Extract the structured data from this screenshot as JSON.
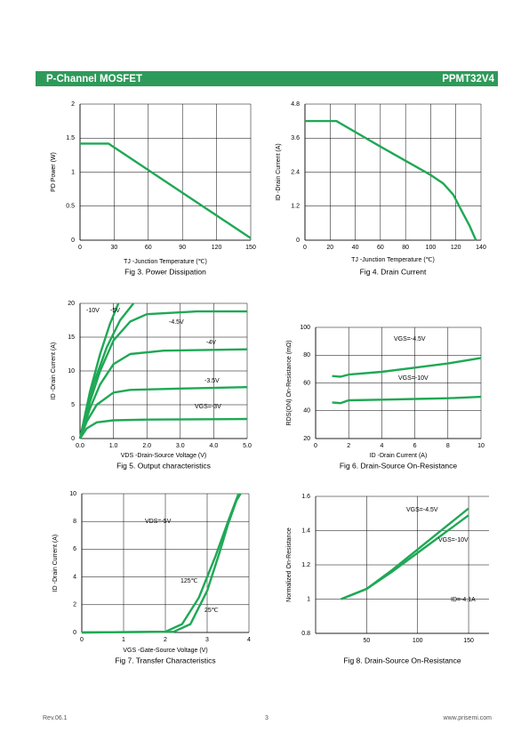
{
  "header": {
    "title": "P-Channel MOSFET",
    "part": "PPMT32V4"
  },
  "footer": {
    "rev": "Rev.06.1",
    "page": "3",
    "site": "www.prisemi.com"
  },
  "chart_data": [
    {
      "type": "line",
      "title": "Fig 3. Power Dissipation",
      "x_label": "TJ -Junction Temperature (℃)",
      "y_label": "PD Power (W)",
      "color": "#1fa855",
      "grid": true,
      "xlim": [
        0,
        150
      ],
      "xticks": [
        0,
        30,
        60,
        90,
        120,
        150
      ],
      "ylim": [
        0,
        2
      ],
      "yticks": [
        0,
        0.5,
        1,
        1.5,
        2
      ],
      "series": [
        {
          "x": [
            0,
            25,
            150
          ],
          "values": [
            1.42,
            1.42,
            0.03
          ]
        }
      ],
      "annotations": []
    },
    {
      "type": "line",
      "title": "Fig 4. Drain Current",
      "x_label": "TJ -Junction Temperature (℃)",
      "y_label": "ID -Drain Current (A)",
      "color": "#1fa855",
      "grid": true,
      "xlim": [
        0,
        140
      ],
      "xticks": [
        0,
        20,
        40,
        60,
        80,
        100,
        120,
        140
      ],
      "ylim": [
        0,
        4.8
      ],
      "yticks": [
        0,
        1.2,
        2.4,
        3.6,
        4.8
      ],
      "series": [
        {
          "x": [
            0,
            25,
            60,
            100,
            110,
            118,
            125,
            131,
            136
          ],
          "values": [
            4.2,
            4.2,
            3.3,
            2.3,
            2.0,
            1.6,
            1.0,
            0.5,
            0
          ]
        }
      ],
      "annotations": []
    },
    {
      "type": "line",
      "title": "Fig 5. Output characteristics",
      "x_label": "VDS -Drain-Source Voltage (V)",
      "y_label": "ID -Drain Current (A)",
      "color": "#1fa855",
      "grid": true,
      "xlim": [
        0,
        5
      ],
      "xticks": [
        {
          "value": 0,
          "label": "0.0"
        },
        {
          "value": 1,
          "label": "1.0"
        },
        {
          "value": 2,
          "label": "2.0"
        },
        {
          "value": 3,
          "label": "3.0"
        },
        {
          "value": 4,
          "label": "4.0"
        },
        {
          "value": 5,
          "label": "5.0"
        }
      ],
      "ylim": [
        0,
        20
      ],
      "yticks": [
        0,
        5,
        10,
        15,
        20
      ],
      "series": [
        {
          "name": "-10V",
          "x": [
            0,
            0.3,
            0.6,
            0.9,
            1.15
          ],
          "values": [
            0,
            7,
            12.5,
            17,
            20
          ]
        },
        {
          "name": "-5V",
          "x": [
            0,
            0.4,
            0.8,
            1.2,
            1.6
          ],
          "values": [
            0,
            8,
            13.5,
            17.5,
            20
          ]
        },
        {
          "name": "-4.5V",
          "x": [
            0,
            0.3,
            0.6,
            1,
            1.5,
            2,
            3.5,
            5
          ],
          "values": [
            0,
            5.5,
            10,
            14.5,
            17.3,
            18.4,
            18.8,
            18.8
          ]
        },
        {
          "name": "-4V",
          "x": [
            0,
            0.3,
            0.6,
            1,
            1.5,
            2.5,
            5
          ],
          "values": [
            0,
            4.5,
            8,
            11,
            12.5,
            13,
            13.2
          ]
        },
        {
          "name": "-3.5V",
          "x": [
            0,
            0.2,
            0.5,
            1,
            1.5,
            3,
            5
          ],
          "values": [
            0,
            2.5,
            5,
            6.8,
            7.2,
            7.4,
            7.6
          ]
        },
        {
          "name": "VGS=-3V",
          "x": [
            0,
            0.2,
            0.5,
            1,
            2,
            5
          ],
          "values": [
            0,
            1.5,
            2.4,
            2.7,
            2.8,
            2.9
          ]
        }
      ],
      "annotations": []
    },
    {
      "type": "line",
      "title": "Fig 6. Drain-Source On-Resistance",
      "x_label": "ID -Drain Current (A)",
      "y_label": "RDS(ON) On-Resistance (mΩ)",
      "color": "#1fa855",
      "grid": true,
      "xlim": [
        0,
        10
      ],
      "xticks": [
        0,
        2,
        4,
        6,
        8,
        10
      ],
      "ylim": [
        20,
        100
      ],
      "yticks": [
        20,
        40,
        60,
        80,
        100
      ],
      "series": [
        {
          "name": "VGS=-4.5V",
          "x": [
            1,
            1.5,
            2,
            4,
            6,
            8,
            10
          ],
          "values": [
            65,
            64.5,
            66,
            68,
            71,
            74,
            78
          ]
        },
        {
          "name": "VGS=-10V",
          "x": [
            1,
            1.5,
            2,
            4,
            6,
            8,
            10
          ],
          "values": [
            46,
            45.5,
            47.5,
            48,
            48.5,
            49,
            50
          ]
        }
      ],
      "annotations": []
    },
    {
      "type": "line",
      "title": "Fig 7. Transfer Characteristics",
      "x_label": "VGS -Gate-Source Voltage (V)",
      "y_label": "ID -Drain Current (A)",
      "color": "#1fa855",
      "grid": true,
      "xlim": [
        0,
        4
      ],
      "xticks": [
        0,
        1,
        2,
        3,
        4
      ],
      "ylim": [
        0,
        10
      ],
      "yticks": [
        0,
        2,
        4,
        6,
        8,
        10
      ],
      "series": [
        {
          "name": "125℃",
          "x": [
            0,
            2,
            2.4,
            2.8,
            3.2,
            3.5,
            3.75
          ],
          "values": [
            0,
            0.05,
            0.6,
            2.5,
            5.5,
            8,
            10
          ]
        },
        {
          "name": "25℃",
          "x": [
            0,
            2.2,
            2.6,
            3,
            3.3,
            3.5,
            3.7,
            3.8
          ],
          "values": [
            0,
            0.05,
            0.6,
            3,
            5.8,
            7.8,
            9.5,
            10
          ]
        }
      ],
      "annotations": [
        "VDS=-5V"
      ]
    },
    {
      "type": "line",
      "title": "Fig 8. Drain-Source On-Resistance",
      "y_label": "Normalized On-Resistance",
      "color": "#1fa855",
      "grid": true,
      "xlim": [
        0,
        170
      ],
      "xticks": [
        50,
        100,
        150
      ],
      "ylim": [
        0.8,
        1.6
      ],
      "yticks": [
        0.8,
        1,
        1.2,
        1.4,
        1.6
      ],
      "series": [
        {
          "name": "VGS=-4.5V",
          "x": [
            25,
            50,
            75,
            100,
            125,
            150
          ],
          "values": [
            1.0,
            1.06,
            1.17,
            1.29,
            1.41,
            1.53
          ]
        },
        {
          "name": "VGS=-10V",
          "x": [
            25,
            50,
            75,
            100,
            125,
            150
          ],
          "values": [
            1.0,
            1.06,
            1.16,
            1.27,
            1.38,
            1.49
          ]
        }
      ],
      "annotations": [
        "ID=-4.1A"
      ]
    }
  ]
}
